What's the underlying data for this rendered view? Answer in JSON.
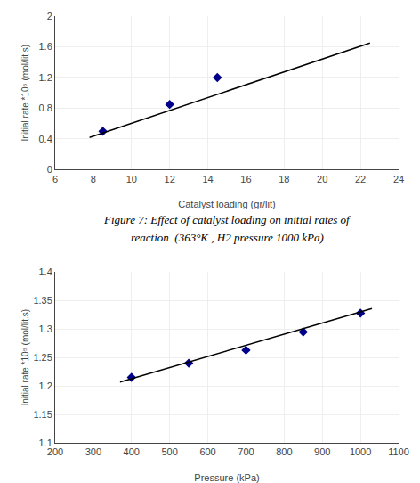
{
  "chart_data": [
    {
      "type": "scatter",
      "xlabel": "Catalyst loading (gr/lit)",
      "ylabel": "Initial rate *10⁵ (mol/lit.s)",
      "series": [
        {
          "type": "scatter",
          "marker": "diamond",
          "color": "#00008B",
          "x": [
            8.5,
            12,
            14.5
          ],
          "values": [
            0.5,
            0.85,
            1.2
          ]
        },
        {
          "type": "line",
          "line_style": "solid",
          "color": "#000000",
          "x": [
            7.8,
            22.5
          ],
          "values": [
            0.42,
            1.65
          ]
        }
      ],
      "xlim": [
        6,
        24
      ],
      "ylim": [
        0,
        2.0
      ],
      "xticks": [
        6,
        8,
        10,
        12,
        14,
        16,
        18,
        20,
        22,
        24
      ],
      "yticks": [
        0,
        0.4,
        0.8,
        1.2,
        1.6,
        2.0
      ],
      "annotations": [
        "Figure 7: Effect of catalyst loading on initial rates of",
        "reaction  (363°K , H2 pressure 1000 kPa)"
      ]
    },
    {
      "type": "scatter",
      "xlabel": "Pressure (kPa)",
      "ylabel": "Initial rate *10⁵ (mol/lit.s)",
      "series": [
        {
          "type": "scatter",
          "marker": "diamond",
          "color": "#00008B",
          "x": [
            400,
            550,
            700,
            850,
            1000
          ],
          "values": [
            1.215,
            1.24,
            1.263,
            1.295,
            1.328
          ]
        },
        {
          "type": "line",
          "line_style": "solid",
          "color": "#000000",
          "x": [
            370,
            1030
          ],
          "values": [
            1.207,
            1.336
          ]
        }
      ],
      "xlim": [
        200,
        1100
      ],
      "ylim": [
        1.1,
        1.4
      ],
      "xticks": [
        200,
        300,
        400,
        500,
        600,
        700,
        800,
        900,
        1000,
        1100
      ],
      "yticks": [
        1.1,
        1.15,
        1.2,
        1.25,
        1.3,
        1.35,
        1.4
      ]
    }
  ]
}
